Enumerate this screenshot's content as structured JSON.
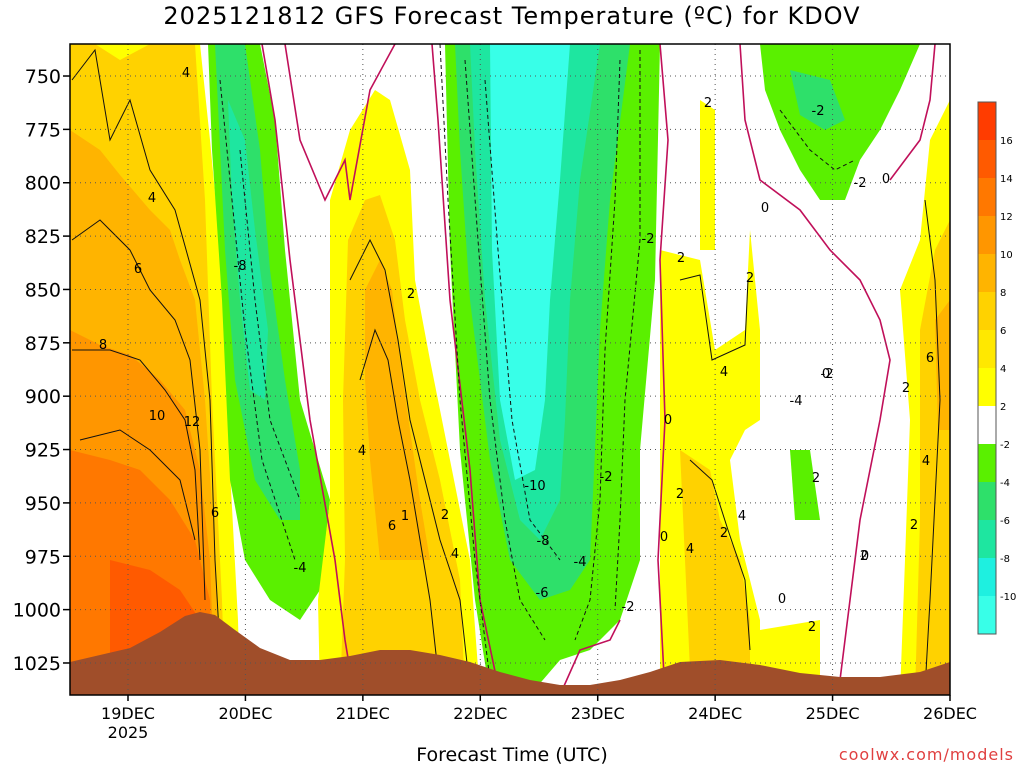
{
  "chart_data": {
    "type": "heatmap",
    "title": "2025121812 GFS Forecast Temperature (ºC) for KDOV",
    "xlabel": "Forecast Time (UTC)",
    "ylabel": "",
    "y_axis": {
      "ticks": [
        750,
        775,
        800,
        825,
        850,
        875,
        900,
        925,
        950,
        975,
        1000,
        1025
      ],
      "range": [
        735,
        1040
      ]
    },
    "x_axis": {
      "ticks": [
        "19DEC",
        "20DEC",
        "21DEC",
        "22DEC",
        "23DEC",
        "24DEC",
        "25DEC",
        "26DEC"
      ],
      "year_label": "2025"
    },
    "colorbar": {
      "labels": [
        16,
        14,
        12,
        10,
        8,
        6,
        4,
        2,
        -2,
        -4,
        -6,
        -8,
        -10
      ],
      "colors": [
        "#ff3c00",
        "#ff5a00",
        "#ff7800",
        "#ff9600",
        "#ffb400",
        "#ffd200",
        "#ffe800",
        "#ffff00",
        "#ffffff",
        "#5af000",
        "#2ee06a",
        "#1ee6a0",
        "#1ef0e0",
        "#38ffe8"
      ]
    },
    "contour_labels": [
      "4",
      "4",
      "6",
      "8",
      "10",
      "12",
      "6",
      "-8",
      "4",
      "6",
      "1",
      "2",
      "2",
      "4",
      "-4",
      "-10",
      "-8",
      "-6",
      "-4",
      "-2",
      "-2",
      "-2",
      "2",
      "2",
      "2",
      "4",
      "2",
      "4",
      "4",
      "2",
      "0",
      "0",
      "0",
      "0",
      "-2",
      "-4",
      "-2",
      "0",
      "2",
      "0",
      "2",
      "-2",
      "6",
      "4",
      "2",
      "2",
      "0",
      "2"
    ]
  },
  "credit": "coolwx.com/models"
}
